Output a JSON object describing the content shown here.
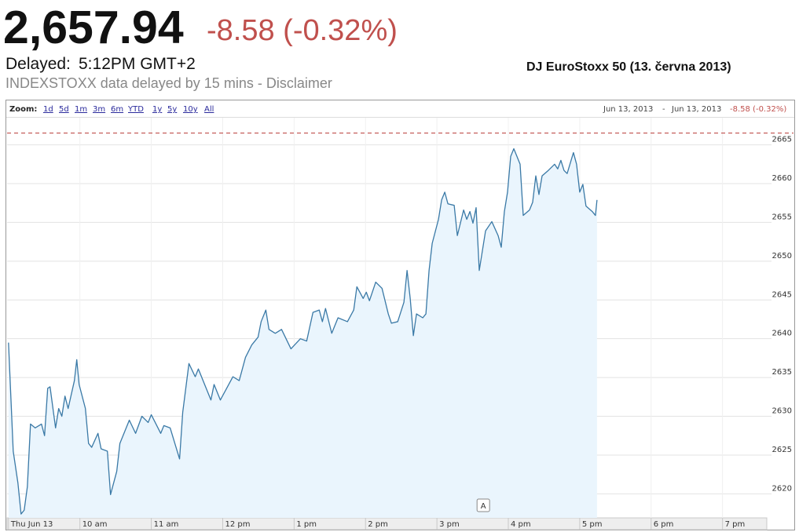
{
  "header": {
    "price": "2,657.94",
    "change": "-8.58 (-0.32%)",
    "delayed_label": "Delayed:",
    "time": "5:12PM GMT+2",
    "note": "INDEXSTOXX data delayed by 15 mins - Disclaimer"
  },
  "toolbar": {
    "zoom_label": "Zoom:",
    "zoom_options": [
      "1d",
      "5d",
      "1m",
      "3m",
      "6m",
      "YTD",
      "1y",
      "5y",
      "10y",
      "All"
    ],
    "range_start": "Jun 13, 2013",
    "range_separator": "-",
    "range_end": "Jun 13, 2013",
    "range_change": "-8.58 (-0.32%)"
  },
  "chart_data": {
    "type": "line",
    "title": "DJ EuroStoxx 50 (13. června 2013)",
    "color": "#3a79a6",
    "fill_color": "#eaf5fd",
    "reference_line": 2666.52,
    "reference_color": "#c0504d",
    "x": [
      9.0,
      9.066,
      9.132,
      9.176,
      9.22,
      9.264,
      9.308,
      9.374,
      9.462,
      9.505,
      9.549,
      9.582,
      9.659,
      9.703,
      9.747,
      9.791,
      9.835,
      9.923,
      9.956,
      9.989,
      10.077,
      10.121,
      10.165,
      10.253,
      10.297,
      10.385,
      10.429,
      10.516,
      10.56,
      10.604,
      10.692,
      10.78,
      10.868,
      10.956,
      11.0,
      11.132,
      11.176,
      11.264,
      11.396,
      11.44,
      11.527,
      11.615,
      11.659,
      11.747,
      11.835,
      11.879,
      11.967,
      12.055,
      12.143,
      12.231,
      12.319,
      12.407,
      12.495,
      12.538,
      12.604,
      12.648,
      12.736,
      12.824,
      12.956,
      13.088,
      13.176,
      13.264,
      13.352,
      13.396,
      13.44,
      13.527,
      13.615,
      13.747,
      13.835,
      13.879,
      13.967,
      14.011,
      14.055,
      14.143,
      14.231,
      14.319,
      14.363,
      14.451,
      14.538,
      14.582,
      14.626,
      14.67,
      14.714,
      14.802,
      14.846,
      14.89,
      14.934,
      15.022,
      15.066,
      15.11,
      15.154,
      15.242,
      15.286,
      15.374,
      15.418,
      15.462,
      15.505,
      15.549,
      15.593,
      15.681,
      15.769,
      15.857,
      15.901,
      15.945,
      15.989,
      16.033,
      16.077,
      16.121,
      16.165,
      16.209,
      16.297,
      16.341,
      16.385,
      16.429,
      16.473,
      16.56,
      16.648,
      16.692,
      16.736,
      16.78,
      16.824,
      16.912,
      16.956,
      17.0,
      17.044,
      17.088,
      17.176,
      17.22,
      17.242
    ],
    "values": [
      2639.5,
      2625.5,
      2621.4,
      2617.4,
      2617.9,
      2620.9,
      2629.0,
      2628.5,
      2629.0,
      2627.5,
      2633.6,
      2633.8,
      2628.5,
      2631.0,
      2630.0,
      2632.6,
      2631.0,
      2634.6,
      2637.3,
      2634.1,
      2631.0,
      2626.5,
      2626.0,
      2627.8,
      2625.8,
      2625.5,
      2619.9,
      2622.9,
      2626.5,
      2627.5,
      2629.5,
      2627.8,
      2630.0,
      2629.2,
      2630.2,
      2627.8,
      2628.8,
      2628.5,
      2624.5,
      2630.5,
      2636.8,
      2635.1,
      2636.1,
      2634.1,
      2632.1,
      2634.1,
      2632.1,
      2633.6,
      2635.1,
      2634.6,
      2637.6,
      2639.2,
      2640.2,
      2642.2,
      2643.7,
      2641.2,
      2640.7,
      2641.2,
      2638.7,
      2640.0,
      2639.7,
      2643.4,
      2643.7,
      2642.2,
      2643.9,
      2640.7,
      2642.7,
      2642.2,
      2643.7,
      2646.7,
      2645.2,
      2646.0,
      2644.9,
      2647.3,
      2646.5,
      2643.2,
      2642.0,
      2642.2,
      2644.7,
      2648.8,
      2645.2,
      2640.4,
      2643.2,
      2642.7,
      2643.2,
      2648.8,
      2652.3,
      2655.4,
      2657.9,
      2658.9,
      2657.4,
      2657.2,
      2653.3,
      2656.6,
      2655.4,
      2656.4,
      2654.9,
      2656.9,
      2648.8,
      2653.9,
      2655.1,
      2653.3,
      2651.8,
      2656.4,
      2658.9,
      2663.5,
      2664.5,
      2663.5,
      2662.5,
      2655.9,
      2656.6,
      2657.6,
      2661.0,
      2658.6,
      2661.0,
      2661.7,
      2662.5,
      2661.9,
      2663.0,
      2661.7,
      2661.3,
      2664.0,
      2662.5,
      2658.9,
      2659.9,
      2657.1,
      2656.4,
      2655.9,
      2657.9
    ],
    "xlim": [
      8.98,
      19.62
    ],
    "xticks": [
      {
        "value": 9,
        "label": "Thu Jun 13"
      },
      {
        "value": 10,
        "label": "10 am"
      },
      {
        "value": 11,
        "label": "11 am"
      },
      {
        "value": 12,
        "label": "12 pm"
      },
      {
        "value": 13,
        "label": "1 pm"
      },
      {
        "value": 14,
        "label": "2 pm"
      },
      {
        "value": 15,
        "label": "3 pm"
      },
      {
        "value": 16,
        "label": "4 pm"
      },
      {
        "value": 17,
        "label": "5 pm"
      },
      {
        "value": 18,
        "label": "6 pm"
      },
      {
        "value": 19,
        "label": "7 pm"
      }
    ],
    "ylim": [
      2616.9,
      2668.5
    ],
    "yticks": [
      2620,
      2625,
      2630,
      2635,
      2640,
      2645,
      2650,
      2655,
      2660,
      2665
    ],
    "grid": true,
    "annotations": [
      {
        "x": 15.65,
        "label": "A"
      }
    ]
  }
}
